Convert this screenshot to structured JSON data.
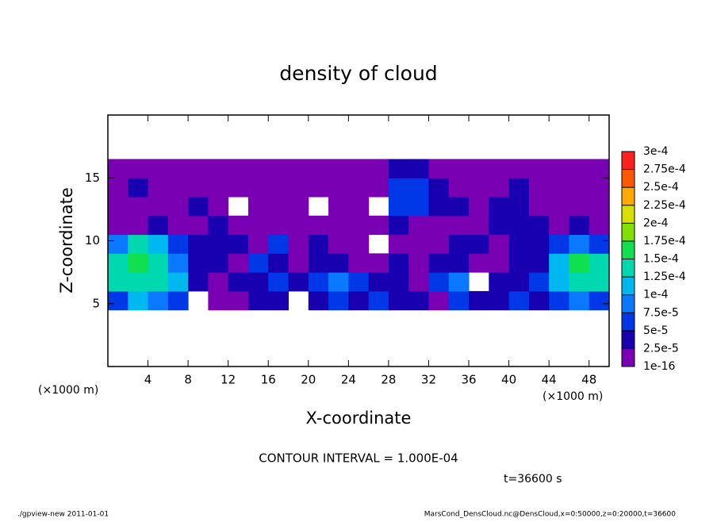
{
  "chart_data": {
    "type": "heatmap",
    "title": "density of cloud",
    "x_label": "X-coordinate",
    "y_label": "Z-coordinate",
    "x_unit_left": "(×1000 m)",
    "x_unit_right": "(×1000 m)",
    "annotation": "CONTOUR INTERVAL = 1.000E-04",
    "time_label": "t=36600 s",
    "footer_left": "./gpview-new  2011-01-01",
    "footer_right": "MarsCond_DensCloud.nc@DensCloud,x=0:50000,z=0:20000,t=36600",
    "xlim": [
      0,
      50
    ],
    "ylim": [
      0,
      20
    ],
    "xticks": [
      4,
      8,
      12,
      16,
      20,
      24,
      28,
      32,
      36,
      40,
      44,
      48
    ],
    "yticks": [
      5,
      10,
      15
    ],
    "x_bins": [
      0,
      2,
      4,
      6,
      8,
      10,
      12,
      14,
      16,
      18,
      20,
      22,
      24,
      26,
      28,
      30,
      32,
      34,
      36,
      38,
      40,
      42,
      44,
      46,
      48,
      50
    ],
    "y_bins": [
      4.5,
      6,
      7.5,
      9,
      10.5,
      12,
      13.5,
      15,
      16.5
    ],
    "values": [
      [
        6e-05,
        0.00011,
        9e-05,
        6e-05,
        null,
        1e-05,
        1e-05,
        3e-05,
        3e-05,
        null,
        3e-05,
        6e-05,
        3e-05,
        6e-05,
        3e-05,
        3e-05,
        1e-05,
        6e-05,
        3e-05,
        3e-05,
        6e-05,
        3e-05,
        6e-05,
        9e-05,
        6e-05
      ],
      [
        0.00014,
        0.00014,
        0.00014,
        0.00011,
        3e-05,
        1e-05,
        3e-05,
        3e-05,
        6e-05,
        3e-05,
        6e-05,
        9e-05,
        6e-05,
        3e-05,
        3e-05,
        1e-05,
        6e-05,
        9e-05,
        null,
        3e-05,
        3e-05,
        6e-05,
        0.00011,
        0.00014,
        0.00014
      ],
      [
        0.00014,
        0.00016,
        0.00014,
        9e-05,
        3e-05,
        3e-05,
        1e-05,
        6e-05,
        3e-05,
        1e-05,
        3e-05,
        3e-05,
        1e-05,
        1e-05,
        3e-05,
        1e-05,
        3e-05,
        3e-05,
        1e-05,
        1e-05,
        3e-05,
        3e-05,
        0.00011,
        0.00016,
        0.00014
      ],
      [
        9e-05,
        0.00014,
        0.00011,
        6e-05,
        3e-05,
        3e-05,
        3e-05,
        1e-05,
        6e-05,
        1e-05,
        3e-05,
        1e-05,
        1e-05,
        null,
        1e-05,
        1e-05,
        1e-05,
        3e-05,
        3e-05,
        1e-05,
        3e-05,
        3e-05,
        6e-05,
        9e-05,
        6e-05
      ],
      [
        1e-05,
        1e-05,
        3e-05,
        1e-05,
        1e-05,
        3e-05,
        1e-05,
        1e-05,
        1e-05,
        1e-05,
        1e-05,
        1e-05,
        1e-05,
        1e-05,
        3e-05,
        1e-05,
        1e-05,
        1e-05,
        1e-05,
        3e-05,
        3e-05,
        3e-05,
        1e-05,
        3e-05,
        1e-05
      ],
      [
        1e-05,
        1e-05,
        1e-05,
        1e-05,
        3e-05,
        1e-05,
        null,
        1e-05,
        1e-05,
        1e-05,
        null,
        1e-05,
        1e-05,
        null,
        6e-05,
        6e-05,
        3e-05,
        3e-05,
        1e-05,
        3e-05,
        3e-05,
        1e-05,
        1e-05,
        1e-05,
        1e-05
      ],
      [
        1e-05,
        3e-05,
        1e-05,
        1e-05,
        1e-05,
        1e-05,
        1e-05,
        1e-05,
        1e-05,
        1e-05,
        1e-05,
        1e-05,
        1e-05,
        1e-05,
        6e-05,
        6e-05,
        3e-05,
        1e-05,
        1e-05,
        1e-05,
        3e-05,
        1e-05,
        1e-05,
        1e-05,
        1e-05
      ],
      [
        1e-05,
        1e-05,
        1e-05,
        1e-05,
        1e-05,
        1e-05,
        1e-05,
        1e-05,
        1e-05,
        1e-05,
        1e-05,
        1e-05,
        1e-05,
        1e-05,
        3e-05,
        3e-05,
        1e-05,
        1e-05,
        1e-05,
        1e-05,
        1e-05,
        1e-05,
        1e-05,
        1e-05,
        1e-05
      ]
    ],
    "levels": [
      1e-16,
      {
        "value": 2.5e-05,
        "label": "2.5e-5"
      },
      {
        "value": 5e-05,
        "label": "5e-5"
      },
      {
        "value": 7.5e-05,
        "label": "7.5e-5"
      },
      {
        "value": 0.0001,
        "label": "1e-4"
      },
      {
        "value": 0.000125,
        "label": "1.25e-4"
      },
      {
        "value": 0.00015,
        "label": "1.5e-4"
      },
      {
        "value": 0.000175,
        "label": "1.75e-4"
      },
      {
        "value": 0.0002,
        "label": "2e-4"
      },
      {
        "value": 0.000225,
        "label": "2.25e-4"
      },
      {
        "value": 0.00025,
        "label": "2.5e-4"
      },
      {
        "value": 0.000275,
        "label": "2.75e-4"
      },
      {
        "value": 0.0003,
        "label": "3e-4"
      }
    ],
    "colors": [
      "#7a00b4",
      "#1800b0",
      "#0038e8",
      "#0a78ff",
      "#00b8f0",
      "#00d8b0",
      "#10e050",
      "#80e000",
      "#d8e000",
      "#ffa800",
      "#ff5800",
      "#ff2020",
      "#ff8c8c"
    ]
  }
}
